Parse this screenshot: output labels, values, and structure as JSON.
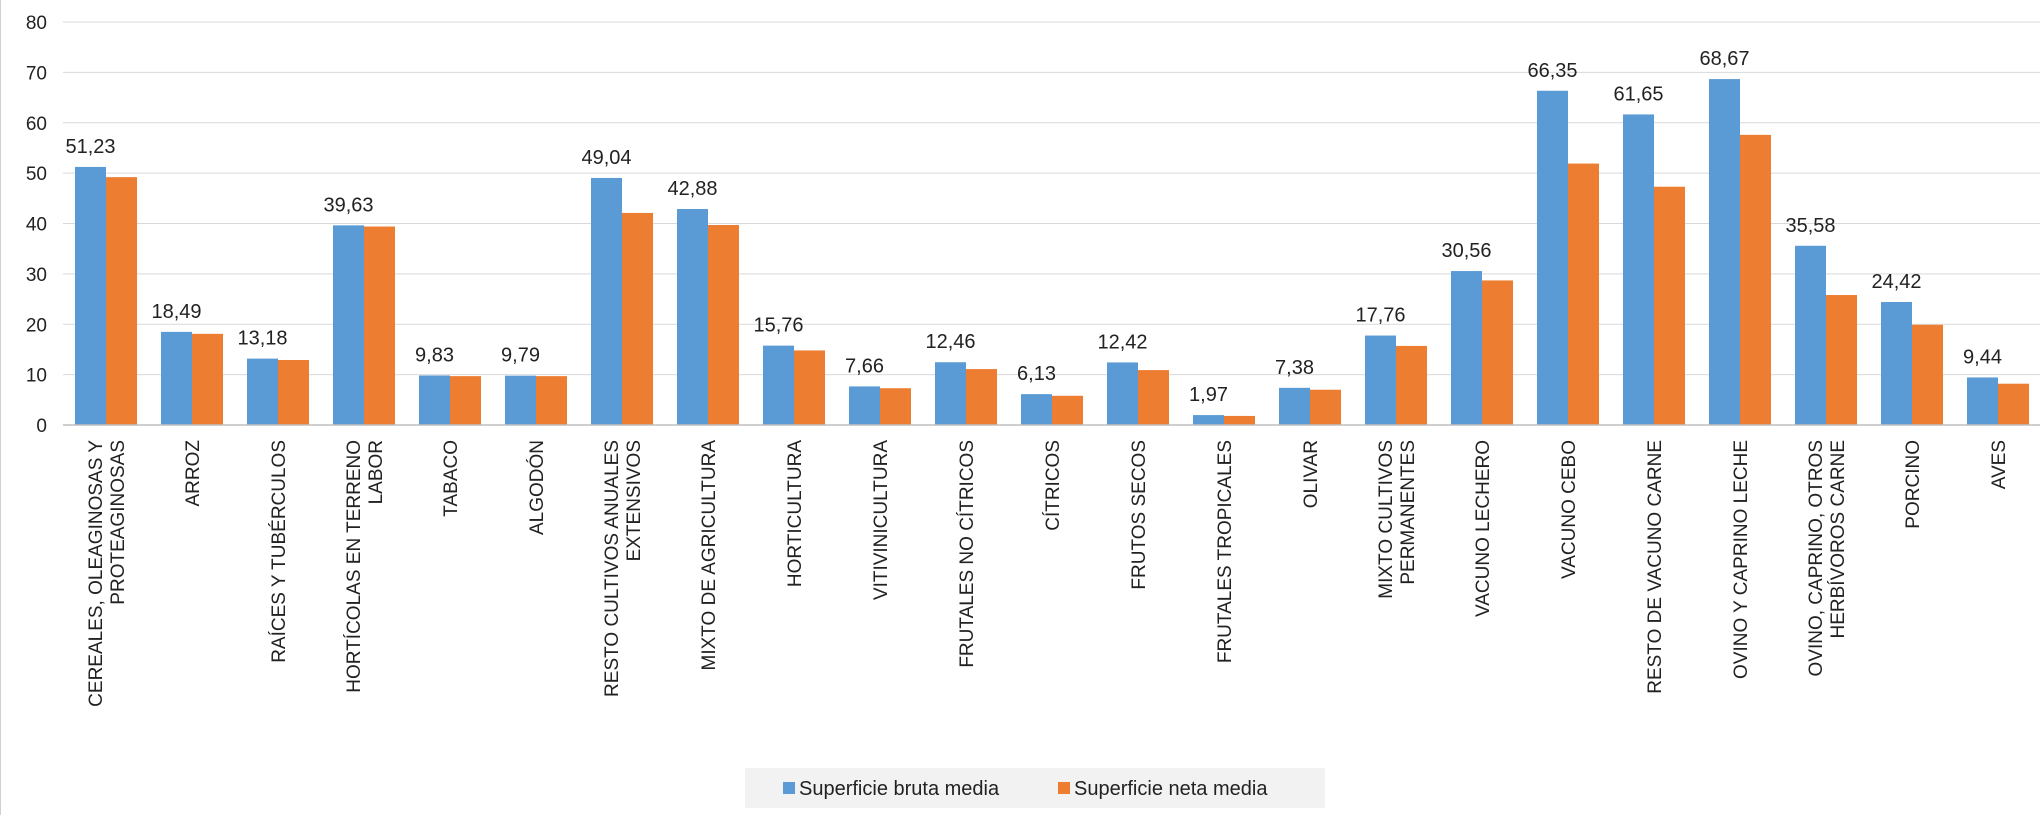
{
  "chart_data": {
    "type": "bar",
    "title": "",
    "xlabel": "",
    "ylabel": "",
    "ylim": [
      0,
      80
    ],
    "yticks": [
      0,
      10,
      20,
      30,
      40,
      50,
      60,
      70,
      80
    ],
    "grid": true,
    "legend_position": "bottom-center",
    "categories": [
      "CEREALES, OLEAGINOSAS Y PROTEAGINOSAS",
      "ARROZ",
      "RAÍCES Y TUBÉRCULOS",
      "HORTÍCOLAS EN TERRENO LABOR",
      "TABACO",
      "ALGODÓN",
      "RESTO CULTIVOS ANUALES EXTENSIVOS",
      "MIXTO DE AGRICULTURA",
      "HORTICULTURA",
      "VITIVINICULTURA",
      "FRUTALES NO CÍTRICOS",
      "CÍTRICOS",
      "FRUTOS SECOS",
      "FRUTALES TROPICALES",
      "OLIVAR",
      "MIXTO CULTIVOS PERMANENTES",
      "VACUNO LECHERO",
      "VACUNO CEBO",
      "RESTO DE VACUNO CARNE",
      "OVINO Y CAPRINO LECHE",
      "OVINO, CAPRINO, OTROS HERBÍVOROS CARNE",
      "PORCINO",
      "AVES"
    ],
    "category_label_lines": [
      [
        "CEREALES, OLEAGINOSAS Y",
        "PROTEAGINOSAS"
      ],
      [
        "ARROZ"
      ],
      [
        "RAÍCES Y TUBÉRCULOS"
      ],
      [
        "HORTÍCOLAS EN TERRENO",
        "LABOR"
      ],
      [
        "TABACO"
      ],
      [
        "ALGODÓN"
      ],
      [
        "RESTO CULTIVOS ANUALES",
        "EXTENSIVOS"
      ],
      [
        "MIXTO DE AGRICULTURA"
      ],
      [
        "HORTICULTURA"
      ],
      [
        "VITIVINICULTURA"
      ],
      [
        "FRUTALES NO CÍTRICOS"
      ],
      [
        "CÍTRICOS"
      ],
      [
        "FRUTOS SECOS"
      ],
      [
        "FRUTALES TROPICALES"
      ],
      [
        "OLIVAR"
      ],
      [
        "MIXTO CULTIVOS",
        "PERMANENTES"
      ],
      [
        "VACUNO LECHERO"
      ],
      [
        "VACUNO CEBO"
      ],
      [
        "RESTO DE VACUNO CARNE"
      ],
      [
        "OVINO Y CAPRINO LECHE"
      ],
      [
        "OVINO, CAPRINO, OTROS",
        "HERBÍVOROS CARNE"
      ],
      [
        "PORCINO"
      ],
      [
        "AVES"
      ]
    ],
    "series": [
      {
        "name": "Superficie bruta media",
        "color": "#5b9bd5",
        "labeled": true,
        "values": [
          51.23,
          18.49,
          13.18,
          39.63,
          9.83,
          9.79,
          49.04,
          42.88,
          15.76,
          7.66,
          12.46,
          6.13,
          12.42,
          1.97,
          7.38,
          17.76,
          30.56,
          66.35,
          61.65,
          68.67,
          35.58,
          24.42,
          9.44
        ],
        "value_labels": [
          "51,23",
          "18,49",
          "13,18",
          "39,63",
          "9,83",
          "9,79",
          "49,04",
          "42,88",
          "15,76",
          "7,66",
          "12,46",
          "6,13",
          "12,42",
          "1,97",
          "7,38",
          "17,76",
          "30,56",
          "66,35",
          "61,65",
          "68,67",
          "35,58",
          "24,42",
          "9,44"
        ]
      },
      {
        "name": "Superficie neta media",
        "color": "#ed7d31",
        "labeled": false,
        "values": [
          49.2,
          18.1,
          12.9,
          39.4,
          9.7,
          9.7,
          42.1,
          39.7,
          14.8,
          7.3,
          11.1,
          5.8,
          10.9,
          1.8,
          7.0,
          15.7,
          28.7,
          51.9,
          47.3,
          57.6,
          25.8,
          19.9,
          8.2
        ]
      }
    ]
  }
}
